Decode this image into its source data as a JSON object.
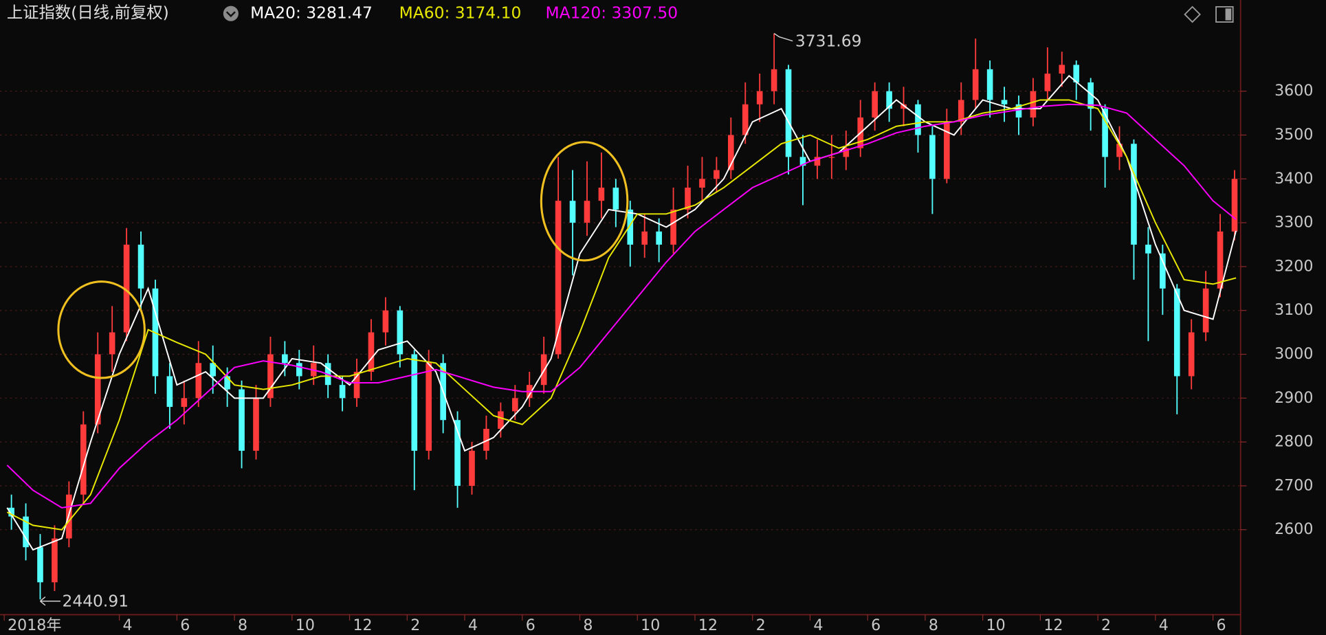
{
  "chart_data": {
    "type": "candlestick",
    "title": "上证指数(日线,前复权)",
    "xlim": [
      0,
      42.9
    ],
    "ylim": [
      2410,
      3750
    ],
    "grid": true,
    "up_color": "#ff3b3b",
    "down_color": "#54ffff",
    "xticks": [
      {
        "value": 0,
        "label": "2018年"
      },
      4,
      6,
      8,
      10,
      12,
      {
        "value": 14,
        "label": "2"
      },
      {
        "value": 16,
        "label": "4"
      },
      {
        "value": 18,
        "label": "6"
      },
      {
        "value": 20,
        "label": "8"
      },
      {
        "value": 22,
        "label": "10"
      },
      {
        "value": 24,
        "label": "12"
      },
      {
        "value": 26,
        "label": "2"
      },
      {
        "value": 28,
        "label": "4"
      },
      {
        "value": 30,
        "label": "6"
      },
      {
        "value": 32,
        "label": "8"
      },
      {
        "value": 34,
        "label": "10"
      },
      {
        "value": 36,
        "label": "12"
      },
      {
        "value": 38,
        "label": "2"
      },
      {
        "value": 40,
        "label": "4"
      },
      {
        "value": 42,
        "label": "6"
      }
    ],
    "yticks": [
      2600,
      2700,
      2800,
      2900,
      3000,
      3100,
      3200,
      3300,
      3400,
      3500,
      3600
    ],
    "candles": {
      "x": [
        0.25,
        0.75,
        1.25,
        1.75,
        2.25,
        2.75,
        3.25,
        3.75,
        4.25,
        4.75,
        5.25,
        5.75,
        6.25,
        6.75,
        7.25,
        7.75,
        8.25,
        8.75,
        9.25,
        9.75,
        10.25,
        10.75,
        11.25,
        11.75,
        12.25,
        12.75,
        13.25,
        13.75,
        14.25,
        14.75,
        15.25,
        15.75,
        16.25,
        16.75,
        17.25,
        17.75,
        18.25,
        18.75,
        19.25,
        19.75,
        20.25,
        20.75,
        21.25,
        21.75,
        22.25,
        22.75,
        23.25,
        23.75,
        24.25,
        24.75,
        25.25,
        25.75,
        26.25,
        26.75,
        27.25,
        27.75,
        28.25,
        28.75,
        29.25,
        29.75,
        30.25,
        30.75,
        31.25,
        31.75,
        32.25,
        32.75,
        33.25,
        33.75,
        34.25,
        34.75,
        35.25,
        35.75,
        36.25,
        36.75,
        37.25,
        37.75,
        38.25,
        38.75,
        39.25,
        39.75,
        40.25,
        40.75,
        41.25,
        41.75,
        42.25,
        42.75
      ],
      "open": [
        2650,
        2630,
        2560,
        2480,
        2580,
        2680,
        2840,
        3000,
        3050,
        3250,
        3150,
        2950,
        2880,
        2900,
        2980,
        2950,
        2920,
        2780,
        2900,
        3000,
        2980,
        2950,
        2980,
        2930,
        2900,
        2960,
        3050,
        3100,
        3000,
        2780,
        2980,
        2850,
        2700,
        2780,
        2830,
        2870,
        2900,
        2930,
        3000,
        3350,
        3300,
        3350,
        3380,
        3330,
        3250,
        3280,
        3250,
        3330,
        3380,
        3400,
        3420,
        3500,
        3570,
        3600,
        3650,
        3450,
        3430,
        3450,
        3450,
        3470,
        3540,
        3600,
        3560,
        3570,
        3500,
        3400,
        3530,
        3580,
        3650,
        3580,
        3570,
        3540,
        3600,
        3640,
        3660,
        3620,
        3560,
        3450,
        3480,
        3250,
        3230,
        3150,
        2950,
        3050,
        3150,
        3280
      ],
      "high": [
        2680,
        2660,
        2590,
        2610,
        2710,
        2870,
        3050,
        3110,
        3288,
        3280,
        3170,
        2980,
        2940,
        3030,
        3020,
        2970,
        2940,
        2930,
        3040,
        3030,
        3010,
        3020,
        3000,
        2950,
        2990,
        3080,
        3130,
        3110,
        3010,
        3010,
        3000,
        2870,
        2800,
        2860,
        2890,
        2930,
        2960,
        3040,
        3450,
        3420,
        3440,
        3460,
        3400,
        3350,
        3320,
        3310,
        3380,
        3430,
        3450,
        3450,
        3540,
        3620,
        3640,
        3731.69,
        3660,
        3500,
        3490,
        3500,
        3510,
        3580,
        3620,
        3620,
        3610,
        3580,
        3520,
        3560,
        3620,
        3720,
        3670,
        3610,
        3590,
        3630,
        3700,
        3690,
        3670,
        3630,
        3570,
        3520,
        3490,
        3290,
        3250,
        3160,
        3080,
        3190,
        3320,
        3420
      ],
      "low": [
        2600,
        2530,
        2440.91,
        2460,
        2560,
        2660,
        2820,
        2960,
        3030,
        3100,
        2910,
        2830,
        2840,
        2880,
        2910,
        2880,
        2740,
        2760,
        2880,
        2950,
        2920,
        2930,
        2900,
        2870,
        2880,
        2940,
        3020,
        2970,
        2690,
        2760,
        2820,
        2650,
        2680,
        2760,
        2810,
        2850,
        2880,
        2910,
        2990,
        3180,
        3270,
        3310,
        3290,
        3200,
        3220,
        3210,
        3230,
        3310,
        3350,
        3370,
        3400,
        3480,
        3530,
        3570,
        3410,
        3340,
        3400,
        3400,
        3420,
        3450,
        3510,
        3530,
        3520,
        3460,
        3320,
        3390,
        3500,
        3560,
        3540,
        3530,
        3500,
        3520,
        3580,
        3610,
        3580,
        3510,
        3380,
        3420,
        3170,
        3030,
        3090,
        2863,
        2920,
        3030,
        3130,
        3260
      ],
      "close": [
        2630,
        2560,
        2480,
        2580,
        2680,
        2840,
        3000,
        3050,
        3250,
        3150,
        2950,
        2880,
        2900,
        2980,
        2950,
        2920,
        2780,
        2900,
        3000,
        2980,
        2950,
        2980,
        2930,
        2900,
        2960,
        3050,
        3100,
        3000,
        2780,
        2980,
        2850,
        2700,
        2780,
        2830,
        2870,
        2900,
        2930,
        3000,
        3350,
        3300,
        3350,
        3380,
        3330,
        3250,
        3280,
        3250,
        3330,
        3380,
        3400,
        3420,
        3500,
        3570,
        3600,
        3650,
        3450,
        3430,
        3450,
        3450,
        3470,
        3540,
        3600,
        3560,
        3570,
        3500,
        3400,
        3530,
        3580,
        3650,
        3580,
        3570,
        3540,
        3600,
        3640,
        3660,
        3620,
        3560,
        3450,
        3480,
        3250,
        3230,
        3150,
        2950,
        3050,
        3150,
        3280,
        3400
      ]
    },
    "ma_x": [
      0.1,
      1,
      2,
      3,
      4,
      5,
      6,
      7,
      8,
      9,
      10,
      11,
      12,
      13,
      14,
      15,
      16,
      17,
      18,
      19,
      20,
      21,
      22,
      23,
      24,
      25,
      26,
      27,
      28,
      29,
      30,
      31,
      32,
      33,
      34,
      35,
      36,
      37,
      38,
      39,
      40,
      41,
      42,
      42.8
    ],
    "series": [
      {
        "name": "MA20:",
        "color": "#ffffff",
        "last_label": "3281.47",
        "values": [
          2650,
          2554,
          2580,
          2800,
          3000,
          3150,
          2930,
          2960,
          2900,
          2900,
          2990,
          2980,
          2930,
          3010,
          3030,
          2960,
          2780,
          2810,
          2880,
          2990,
          3229,
          3330,
          3320,
          3290,
          3330,
          3400,
          3530,
          3560,
          3440,
          3460,
          3520,
          3580,
          3530,
          3500,
          3580,
          3560,
          3560,
          3635,
          3580,
          3450,
          3250,
          3100,
          3080,
          3281.47
        ]
      },
      {
        "name": "MA60:",
        "color": "#e8e800",
        "last_label": "3174.10",
        "values": [
          2640,
          2610,
          2600,
          2680,
          2850,
          3056,
          3027,
          3000,
          2930,
          2920,
          2930,
          2950,
          2950,
          2970,
          2990,
          2980,
          2920,
          2860,
          2840,
          2900,
          3050,
          3220,
          3320,
          3320,
          3340,
          3380,
          3430,
          3480,
          3500,
          3470,
          3490,
          3520,
          3530,
          3530,
          3550,
          3560,
          3580,
          3580,
          3560,
          3450,
          3300,
          3170,
          3160,
          3174.1
        ]
      },
      {
        "name": "MA120:",
        "color": "#ff00ff",
        "last_label": "3307.50",
        "values": [
          2747,
          2690,
          2650,
          2660,
          2740,
          2800,
          2850,
          2910,
          2970,
          2985,
          2975,
          2960,
          2935,
          2935,
          2950,
          2965,
          2945,
          2925,
          2915,
          2915,
          2970,
          3050,
          3130,
          3210,
          3280,
          3330,
          3380,
          3410,
          3440,
          3460,
          3480,
          3505,
          3520,
          3530,
          3545,
          3555,
          3565,
          3570,
          3568,
          3550,
          3490,
          3430,
          3350,
          3307.5
        ]
      }
    ],
    "max_label": {
      "x": 26.75,
      "value": 3731.69
    },
    "min_label": {
      "x": 1.25,
      "value": 2440.91
    }
  }
}
